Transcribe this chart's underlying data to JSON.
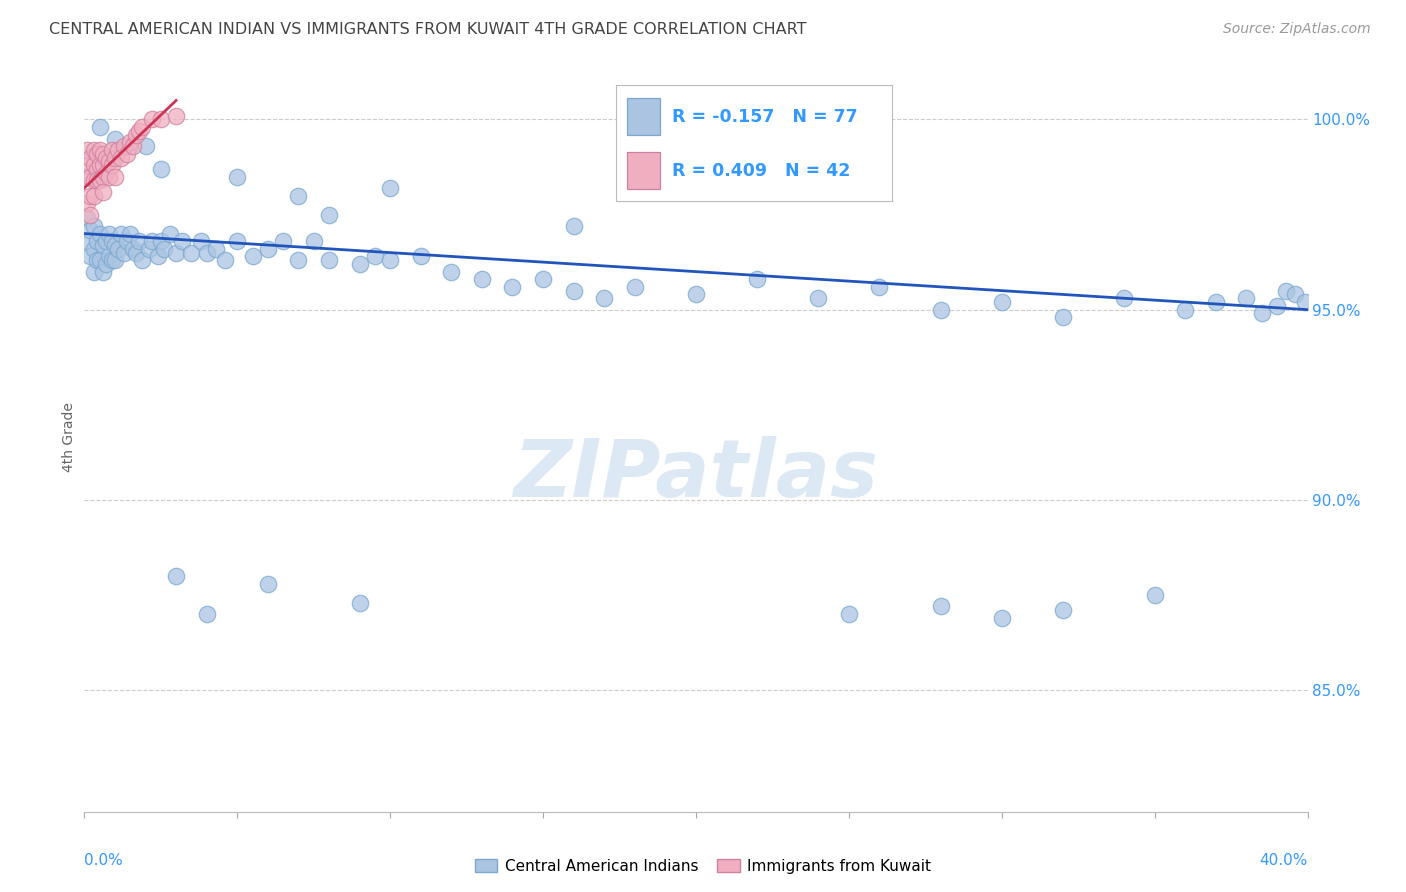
{
  "title": "CENTRAL AMERICAN INDIAN VS IMMIGRANTS FROM KUWAIT 4TH GRADE CORRELATION CHART",
  "source": "Source: ZipAtlas.com",
  "ylabel": "4th Grade",
  "xmin": 0.0,
  "xmax": 0.4,
  "ymin": 0.818,
  "ymax": 1.015,
  "yticks": [
    1.0,
    0.95,
    0.9,
    0.85
  ],
  "ytick_labels": [
    "100.0%",
    "95.0%",
    "90.0%",
    "85.0%"
  ],
  "grid_color": "#cccccc",
  "blue_dot_color": "#aac4e2",
  "blue_dot_edge": "#7aa8d0",
  "pink_dot_color": "#f0afc0",
  "pink_dot_edge": "#d080a0",
  "blue_line_color": "#2255bb",
  "pink_line_color": "#cc3355",
  "title_color": "#444444",
  "axis_label_color": "#3399ff",
  "watermark_text": "ZIPatlas",
  "watermark_color": "#dde8f5",
  "legend_blue_label": "R = -0.157   N = 77",
  "legend_pink_label": "R = 0.409   N = 42",
  "bottom_legend_blue": "Central American Indians",
  "bottom_legend_pink": "Immigrants from Kuwait",
  "blue_x": [
    0.001,
    0.001,
    0.002,
    0.002,
    0.003,
    0.003,
    0.003,
    0.004,
    0.004,
    0.005,
    0.005,
    0.006,
    0.006,
    0.007,
    0.007,
    0.008,
    0.008,
    0.009,
    0.009,
    0.01,
    0.01,
    0.011,
    0.012,
    0.013,
    0.014,
    0.015,
    0.016,
    0.017,
    0.018,
    0.019,
    0.021,
    0.022,
    0.024,
    0.025,
    0.026,
    0.028,
    0.03,
    0.032,
    0.035,
    0.038,
    0.04,
    0.043,
    0.046,
    0.05,
    0.055,
    0.06,
    0.065,
    0.07,
    0.075,
    0.08,
    0.09,
    0.095,
    0.1,
    0.11,
    0.12,
    0.13,
    0.14,
    0.15,
    0.16,
    0.17,
    0.18,
    0.2,
    0.22,
    0.24,
    0.26,
    0.28,
    0.3,
    0.32,
    0.34,
    0.36,
    0.37,
    0.38,
    0.385,
    0.39,
    0.393,
    0.396,
    0.399
  ],
  "blue_y": [
    0.974,
    0.968,
    0.971,
    0.964,
    0.972,
    0.966,
    0.96,
    0.968,
    0.963,
    0.97,
    0.963,
    0.967,
    0.96,
    0.968,
    0.962,
    0.97,
    0.964,
    0.968,
    0.963,
    0.967,
    0.963,
    0.966,
    0.97,
    0.965,
    0.968,
    0.97,
    0.966,
    0.965,
    0.968,
    0.963,
    0.966,
    0.968,
    0.964,
    0.968,
    0.966,
    0.97,
    0.965,
    0.968,
    0.965,
    0.968,
    0.965,
    0.966,
    0.963,
    0.968,
    0.964,
    0.966,
    0.968,
    0.963,
    0.968,
    0.963,
    0.962,
    0.964,
    0.963,
    0.964,
    0.96,
    0.958,
    0.956,
    0.958,
    0.955,
    0.953,
    0.956,
    0.954,
    0.958,
    0.953,
    0.956,
    0.95,
    0.952,
    0.948,
    0.953,
    0.95,
    0.952,
    0.953,
    0.949,
    0.951,
    0.955,
    0.954,
    0.952
  ],
  "blue_outliers_x": [
    0.005,
    0.01,
    0.015,
    0.02,
    0.025,
    0.05,
    0.1,
    0.07,
    0.08,
    0.16,
    0.04,
    0.03,
    0.06,
    0.09,
    0.25,
    0.3,
    0.35,
    0.28,
    0.32
  ],
  "blue_outliers_y": [
    0.998,
    0.995,
    0.993,
    0.993,
    0.987,
    0.985,
    0.982,
    0.98,
    0.975,
    0.972,
    0.87,
    0.88,
    0.878,
    0.873,
    0.87,
    0.869,
    0.875,
    0.872,
    0.871
  ],
  "pink_x": [
    0.001,
    0.001,
    0.001,
    0.001,
    0.002,
    0.002,
    0.002,
    0.002,
    0.003,
    0.003,
    0.003,
    0.003,
    0.004,
    0.004,
    0.004,
    0.005,
    0.005,
    0.005,
    0.006,
    0.006,
    0.006,
    0.006,
    0.007,
    0.007,
    0.008,
    0.008,
    0.009,
    0.009,
    0.01,
    0.01,
    0.011,
    0.012,
    0.013,
    0.014,
    0.015,
    0.016,
    0.017,
    0.018,
    0.019,
    0.022,
    0.025,
    0.03
  ],
  "pink_y": [
    0.985,
    0.988,
    0.992,
    0.978,
    0.985,
    0.99,
    0.98,
    0.975,
    0.988,
    0.984,
    0.992,
    0.98,
    0.987,
    0.984,
    0.991,
    0.988,
    0.984,
    0.992,
    0.988,
    0.985,
    0.991,
    0.981,
    0.99,
    0.986,
    0.989,
    0.985,
    0.992,
    0.988,
    0.99,
    0.985,
    0.992,
    0.99,
    0.993,
    0.991,
    0.994,
    0.993,
    0.996,
    0.997,
    0.998,
    1.0,
    1.0,
    1.001
  ],
  "blue_trend_x": [
    0.0,
    0.4
  ],
  "blue_trend_y": [
    0.97,
    0.95
  ],
  "pink_trend_x": [
    0.0,
    0.03
  ],
  "pink_trend_y": [
    0.982,
    1.005
  ]
}
